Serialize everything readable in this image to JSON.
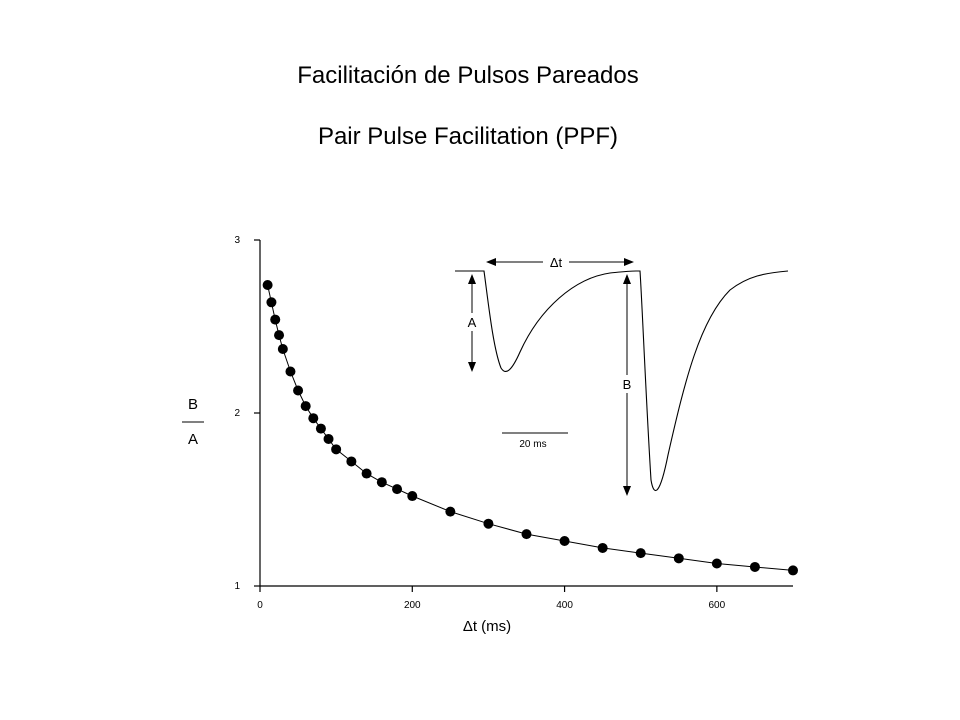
{
  "titles": {
    "line1": "Facilitación de Pulsos Pareados",
    "line2": "Pair Pulse Facilitation (PPF)"
  },
  "chart_data": {
    "type": "scatter",
    "xlabel": "Δt  (ms)",
    "ylabel_numerator": "B",
    "ylabel_denominator": "A",
    "xlim": [
      0,
      700
    ],
    "ylim": [
      1,
      3
    ],
    "x_ticks": [
      "0",
      "200",
      "400",
      "600"
    ],
    "y_ticks": [
      "1",
      "2",
      "3"
    ],
    "fit_curve": true,
    "series": [
      {
        "x": [
          10,
          15,
          20,
          25,
          30,
          40,
          50,
          60,
          70,
          80,
          90,
          100,
          120,
          140,
          160,
          180,
          200,
          250,
          300,
          350,
          400,
          450,
          500,
          550,
          600,
          650,
          700
        ],
        "y": [
          2.74,
          2.64,
          2.54,
          2.45,
          2.37,
          2.24,
          2.13,
          2.04,
          1.97,
          1.91,
          1.85,
          1.79,
          1.72,
          1.65,
          1.6,
          1.56,
          1.52,
          1.43,
          1.36,
          1.3,
          1.26,
          1.22,
          1.19,
          1.16,
          1.13,
          1.11,
          1.09
        ]
      }
    ],
    "inset": {
      "delta_label": "Δt",
      "a_label": "A",
      "b_label": "B",
      "scale_bar_label": "20 ms"
    }
  }
}
